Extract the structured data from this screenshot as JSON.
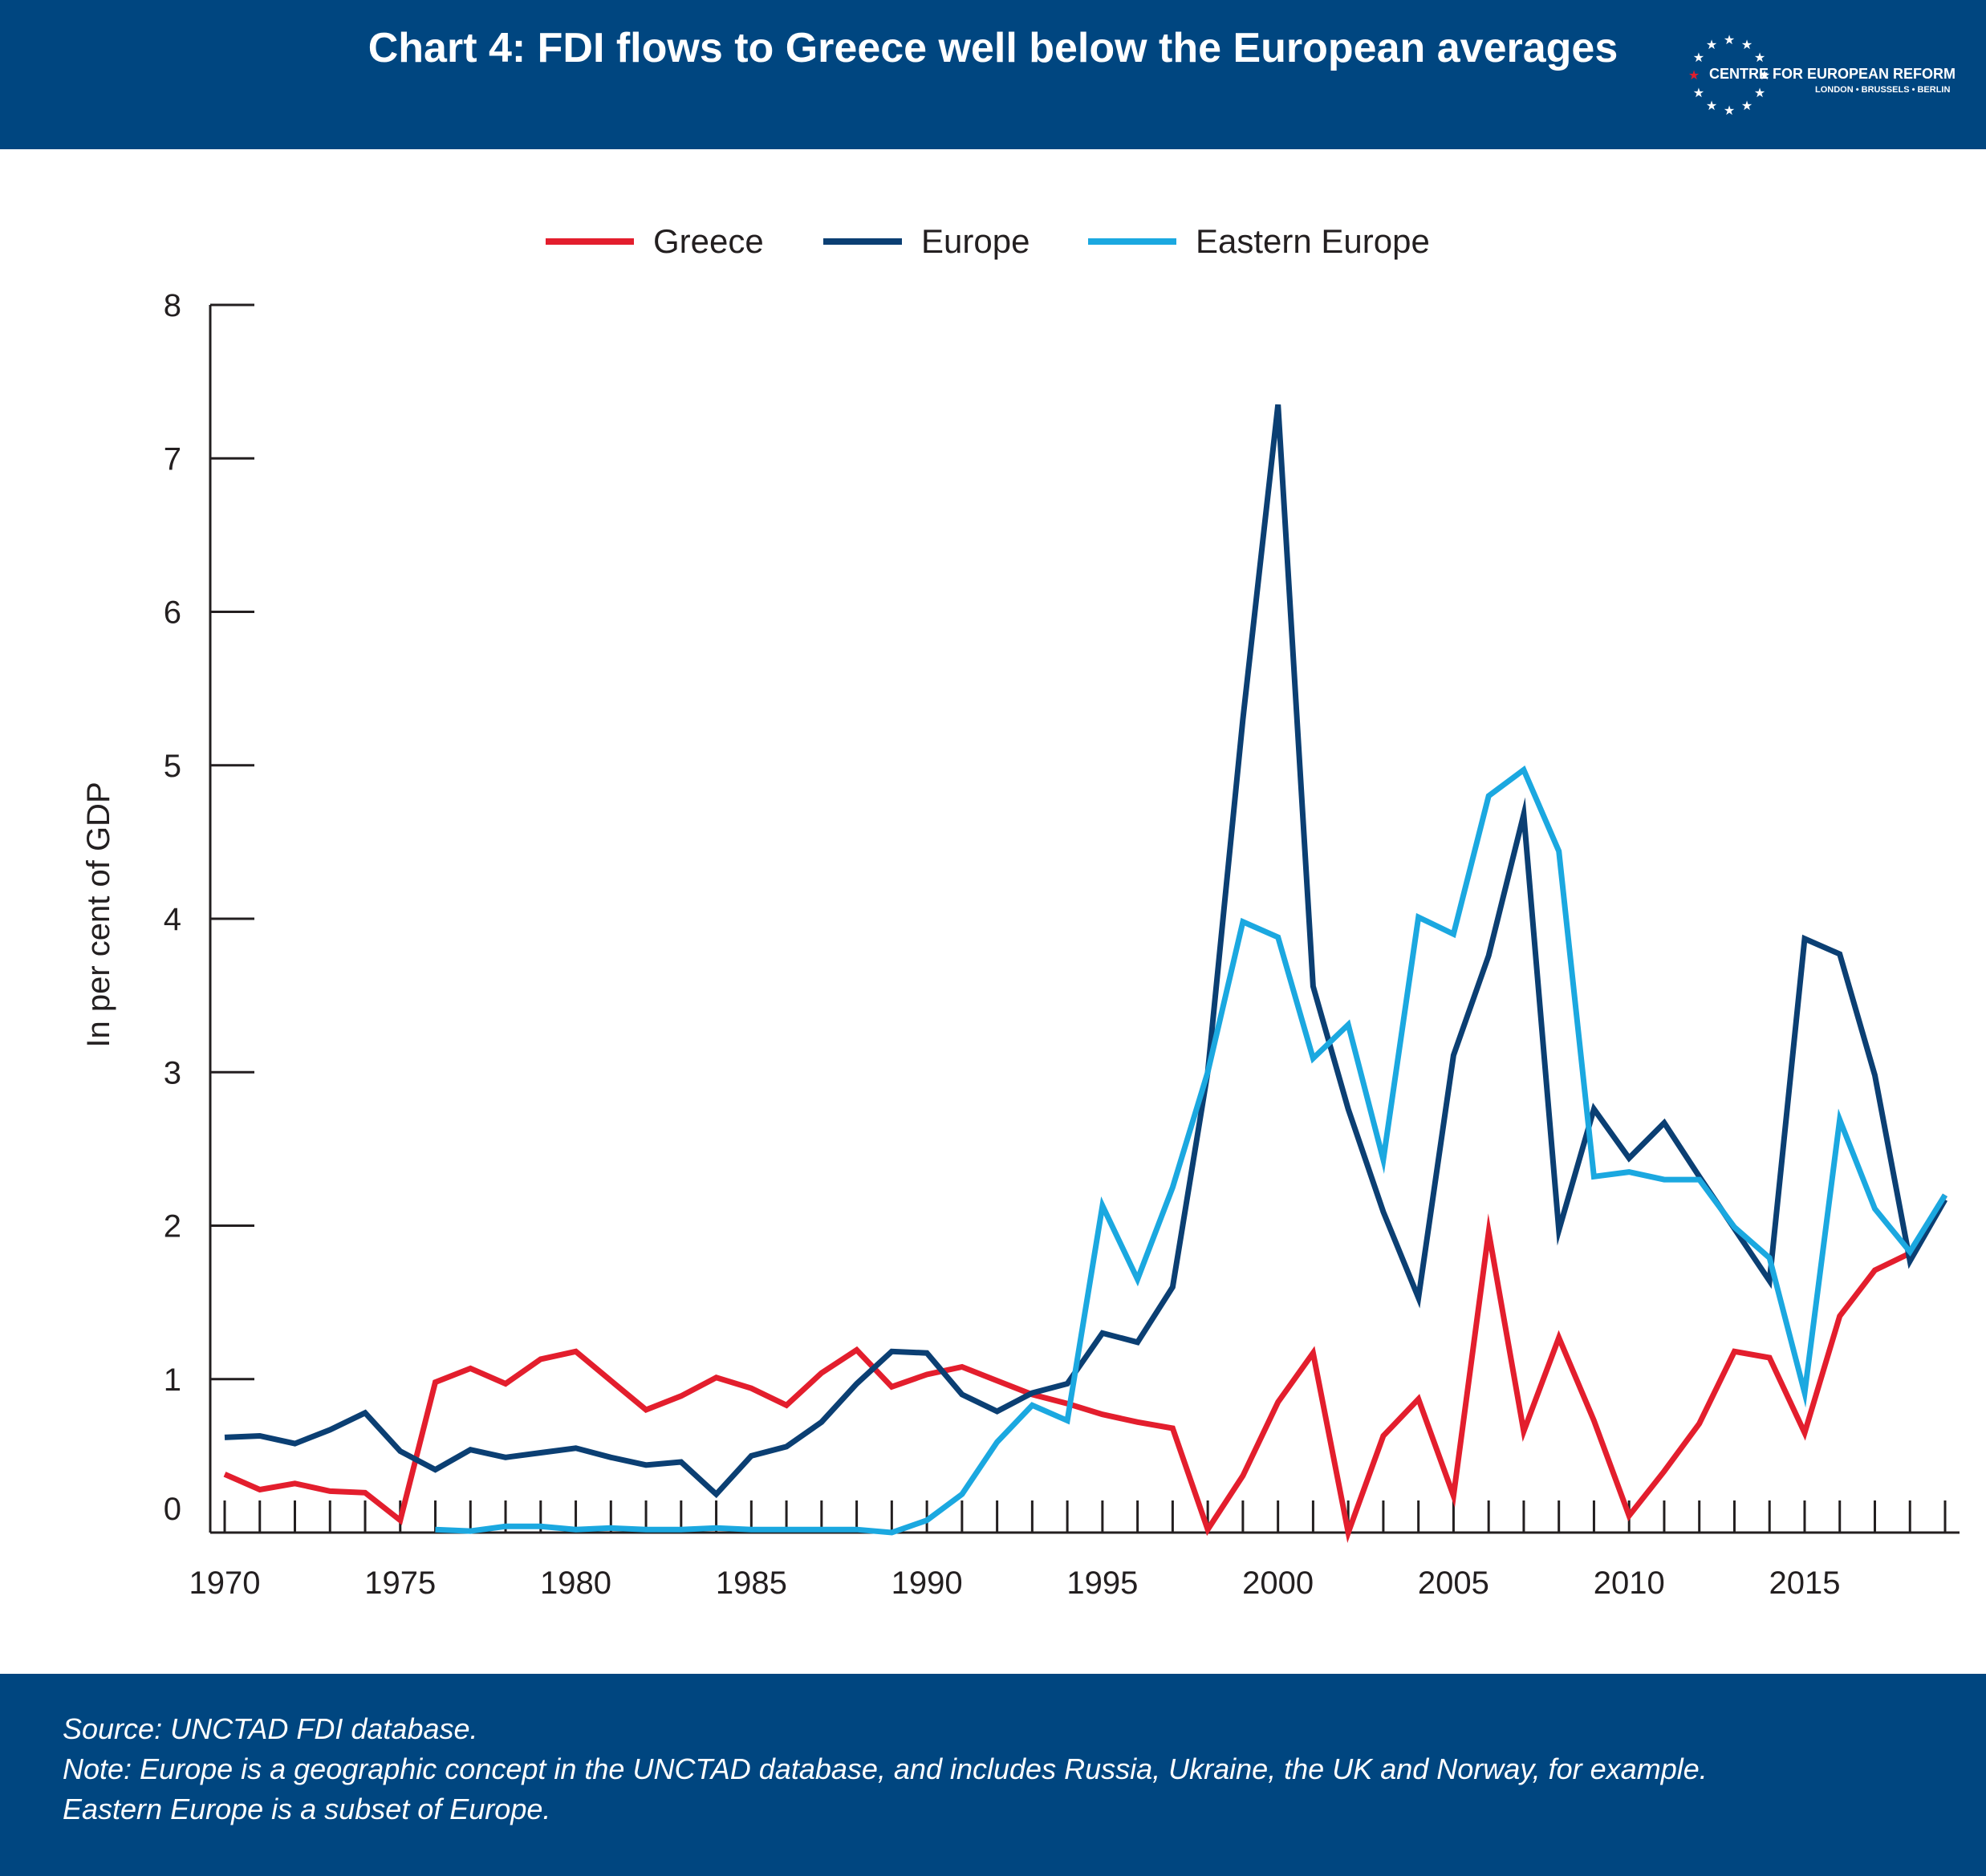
{
  "header": {
    "title": "Chart 4: FDI flows to Greece well below the European averages",
    "logo": {
      "name": "CENTRE FOR EUROPEAN REFORM",
      "cities": "LONDON • BRUSSELS • BERLIN"
    }
  },
  "footer": {
    "source": "Source: UNCTAD FDI database.",
    "note_line1": "Note: Europe is a geographic concept in the UNCTAD database, and includes Russia, Ukraine, the UK and Norway, for example.",
    "note_line2": "Eastern Europe is a subset of Europe."
  },
  "colors": {
    "header_bg": "#004680",
    "greece": "#e31e2d",
    "europe": "#0b3f73",
    "eastern_europe": "#1ba8e0",
    "axis": "#231f20"
  },
  "chart_data": {
    "type": "line",
    "ylabel": "In per cent of GDP",
    "xlabel": "",
    "ylim": [
      0,
      8
    ],
    "xlim": [
      1970,
      2019
    ],
    "yticks": [
      "0",
      "1",
      "2",
      "3",
      "4",
      "5",
      "6",
      "7",
      "8"
    ],
    "xticks": [
      "1970",
      "1975",
      "1980",
      "1985",
      "1990",
      "1995",
      "2000",
      "2005",
      "2010",
      "2015"
    ],
    "legend": "top-center",
    "grid": false,
    "series": [
      {
        "name": "Greece",
        "color": "#e31e2d",
        "x": [
          1970,
          1971,
          1972,
          1973,
          1974,
          1975,
          1976,
          1977,
          1978,
          1979,
          1980,
          1981,
          1982,
          1983,
          1984,
          1985,
          1986,
          1987,
          1988,
          1989,
          1990,
          1991,
          1992,
          1993,
          1994,
          1995,
          1996,
          1997,
          1998,
          1999,
          2000,
          2001,
          2002,
          2003,
          2004,
          2005,
          2006,
          2007,
          2008,
          2009,
          2010,
          2011,
          2012,
          2013,
          2014,
          2015,
          2016,
          2017,
          2018,
          2019
        ],
        "values": [
          0.38,
          0.28,
          0.32,
          0.27,
          0.26,
          0.08,
          0.98,
          1.07,
          0.97,
          1.13,
          1.18,
          0.99,
          0.8,
          0.89,
          1.01,
          0.94,
          0.83,
          1.04,
          1.19,
          0.95,
          1.03,
          1.08,
          0.99,
          0.9,
          0.84,
          0.77,
          0.72,
          0.68,
          0.02,
          0.37,
          0.85,
          1.17,
          0.0,
          0.63,
          0.87,
          0.24,
          1.96,
          0.66,
          1.27,
          0.73,
          0.11,
          0.4,
          0.71,
          1.18,
          1.14,
          0.65,
          1.41,
          1.71,
          1.82,
          2.2
        ]
      },
      {
        "name": "Europe",
        "color": "#0b3f73",
        "x": [
          1970,
          1971,
          1972,
          1973,
          1974,
          1975,
          1976,
          1977,
          1978,
          1979,
          1980,
          1981,
          1982,
          1983,
          1984,
          1985,
          1986,
          1987,
          1988,
          1989,
          1990,
          1991,
          1992,
          1993,
          1994,
          1995,
          1996,
          1997,
          1998,
          1999,
          2000,
          2001,
          2002,
          2003,
          2004,
          2005,
          2006,
          2007,
          2008,
          2009,
          2010,
          2011,
          2012,
          2013,
          2014,
          2015,
          2016,
          2017,
          2018,
          2019
        ],
        "values": [
          0.62,
          0.63,
          0.58,
          0.67,
          0.78,
          0.53,
          0.41,
          0.54,
          0.49,
          0.52,
          0.55,
          0.49,
          0.44,
          0.46,
          0.25,
          0.5,
          0.56,
          0.72,
          0.97,
          1.18,
          1.17,
          0.9,
          0.79,
          0.91,
          0.97,
          1.3,
          1.24,
          1.6,
          3.0,
          5.3,
          7.35,
          3.56,
          2.76,
          2.09,
          1.53,
          3.11,
          3.76,
          4.68,
          1.97,
          2.76,
          2.44,
          2.67,
          2.32,
          1.98,
          1.64,
          3.87,
          3.77,
          2.98,
          1.77,
          2.17
        ]
      },
      {
        "name": "Eastern Europe",
        "color": "#1ba8e0",
        "x": [
          1976,
          1977,
          1978,
          1979,
          1980,
          1981,
          1982,
          1983,
          1984,
          1985,
          1986,
          1987,
          1988,
          1989,
          1990,
          1991,
          1992,
          1993,
          1994,
          1995,
          1996,
          1997,
          1998,
          1999,
          2000,
          2001,
          2002,
          2003,
          2004,
          2005,
          2006,
          2007,
          2008,
          2009,
          2010,
          2011,
          2012,
          2013,
          2014,
          2015,
          2016,
          2017,
          2018,
          2019
        ],
        "values": [
          0.02,
          0.01,
          0.04,
          0.04,
          0.02,
          0.03,
          0.02,
          0.02,
          0.03,
          0.02,
          0.02,
          0.02,
          0.02,
          0.0,
          0.08,
          0.25,
          0.59,
          0.83,
          0.73,
          2.13,
          1.65,
          2.25,
          3.0,
          3.98,
          3.88,
          3.09,
          3.31,
          2.43,
          4.01,
          3.9,
          4.8,
          4.97,
          4.44,
          2.32,
          2.35,
          2.3,
          2.3,
          1.99,
          1.79,
          0.91,
          2.69,
          2.11,
          1.83,
          2.2
        ]
      }
    ]
  }
}
